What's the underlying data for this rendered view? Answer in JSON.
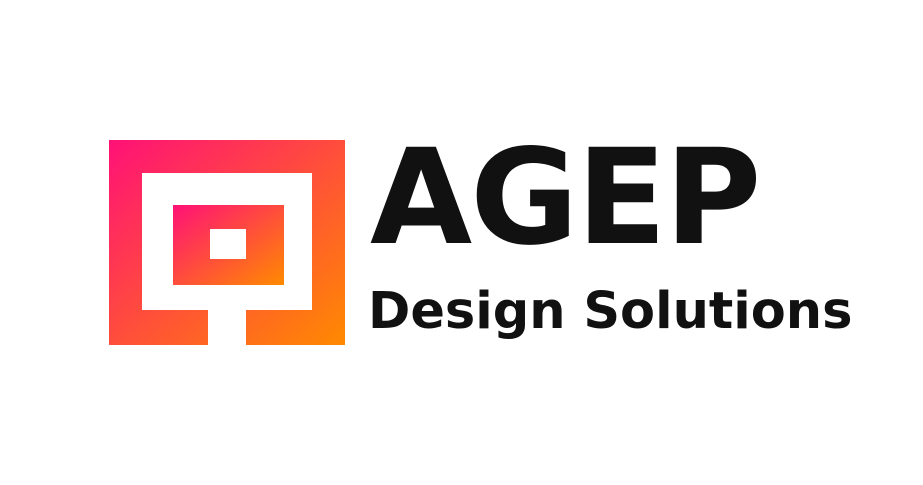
{
  "logo": {
    "icon_name": "nested-square-logo-icon",
    "gradient_start": "#ff1177",
    "gradient_end": "#ff8a00"
  },
  "brand": {
    "name": "AGEP",
    "tagline": "Design Solutions",
    "text_color": "#111111"
  },
  "background": "#ffffff"
}
